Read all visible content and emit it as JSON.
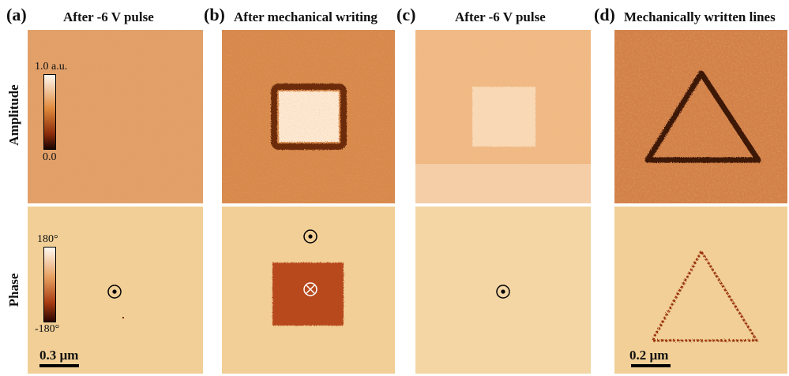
{
  "panels": [
    {
      "letter": "(a)",
      "title": "After -6 V pulse"
    },
    {
      "letter": "(b)",
      "title": "After mechanical writing"
    },
    {
      "letter": "(c)",
      "title": "After -6 V pulse"
    },
    {
      "letter": "(d)",
      "title": "Mechanically written lines"
    }
  ],
  "rows": {
    "amplitude": "Amplitude",
    "phase": "Phase"
  },
  "colorbars": {
    "amplitude": {
      "max": "1.0 a.u.",
      "min": "0.0"
    },
    "phase": {
      "max": "180°",
      "min": "-180°"
    }
  },
  "scalebars": {
    "a": "0.3 µm",
    "d": "0.2 µm"
  },
  "colors": {
    "amplitude_dark": "#2a0a00",
    "amplitude_mid": "#c0581a",
    "amplitude_light": "#fff8f0",
    "phase_background": "#f1cf96",
    "phase_domain": "#b8481a"
  },
  "icons": {
    "out_of_plane": "dot-in-circle-icon",
    "into_plane": "cross-in-circle-icon"
  }
}
